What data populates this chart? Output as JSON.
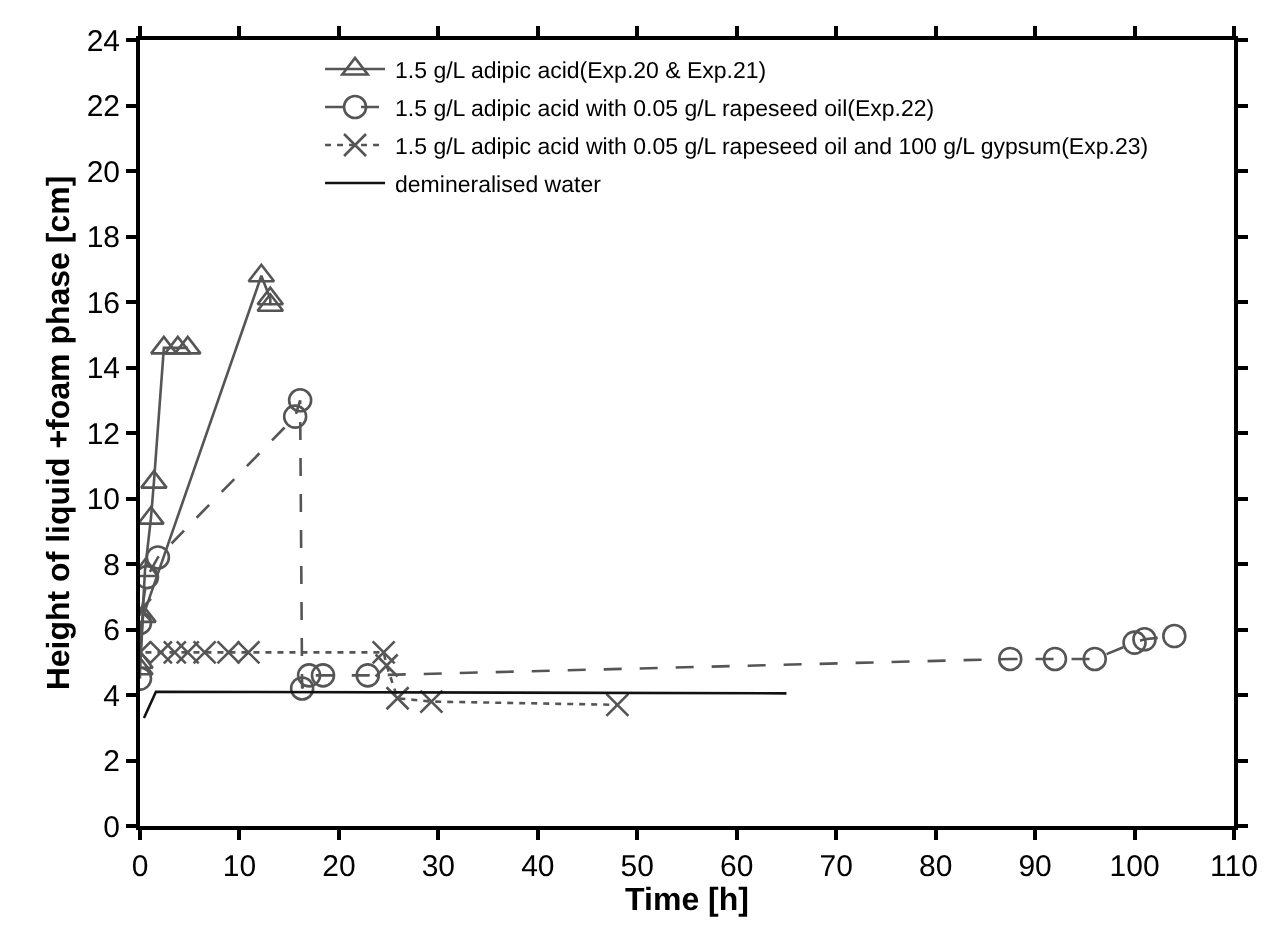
{
  "chart_data": {
    "type": "line",
    "xlabel": "Time [h]",
    "ylabel": "Height of liquid +foam phase [cm]",
    "xlim": [
      0,
      110
    ],
    "xticks": [
      0,
      10,
      20,
      30,
      40,
      50,
      60,
      70,
      80,
      90,
      100,
      110
    ],
    "ylim": [
      0,
      24
    ],
    "yticks": [
      0,
      2,
      4,
      6,
      8,
      10,
      12,
      14,
      16,
      18,
      20,
      22,
      24
    ],
    "grid": false,
    "legend": "top left",
    "series": [
      {
        "name": "1.5 g/L adipic acid(Exp.20 & Exp.21)",
        "color": "#555555",
        "marker": "triangle",
        "line_style": "solid",
        "x": [
          0,
          0.5,
          1.1,
          1.4,
          2.4,
          3.8,
          4.8
        ],
        "values": [
          5,
          7.8,
          9.4,
          10.5,
          14.6,
          14.6,
          14.6
        ]
      },
      {
        "color": "#555555",
        "marker": "triangle",
        "line_style": "solid",
        "x": [
          0,
          0.3,
          12.2,
          13.1,
          13.1
        ],
        "values": [
          4.8,
          6.4,
          16.8,
          16.1,
          15.9
        ]
      },
      {
        "name": "1.5 g/L adipic acid with 0.05 g/L rapeseed oil(Exp.22)",
        "color": "#555555",
        "marker": "circle",
        "line_style": "dashed",
        "x": [
          0,
          0,
          0.7,
          1.8,
          15.6,
          16.1,
          16.3,
          17,
          18.4,
          22.9,
          87.5,
          92,
          96,
          100,
          101,
          104
        ],
        "values": [
          4.5,
          6.2,
          7.6,
          8.2,
          12.5,
          13.0,
          4.2,
          4.6,
          4.6,
          4.6,
          5.1,
          5.1,
          5.1,
          5.6,
          5.7,
          5.8
        ]
      },
      {
        "name": "1.5 g/L adipic acid with 0.05 g/L rapeseed oil and 100 g/L gypsum(Exp.23)",
        "color": "#555555",
        "marker": "cross",
        "line_style": "dotted",
        "x": [
          0,
          0,
          2.1,
          3.5,
          4.8,
          6.5,
          8.9,
          10.9,
          24.5,
          24.8,
          25.9,
          29.3,
          48
        ],
        "values": [
          6.6,
          5.3,
          5.3,
          5.3,
          5.3,
          5.3,
          5.3,
          5.3,
          5.3,
          4.9,
          3.9,
          3.8,
          3.7
        ]
      },
      {
        "name": "demineralised water",
        "color": "#111111",
        "marker": "none",
        "line_style": "solid",
        "x": [
          0.4,
          1.6,
          65
        ],
        "values": [
          3.3,
          4.1,
          4.05
        ]
      }
    ]
  }
}
